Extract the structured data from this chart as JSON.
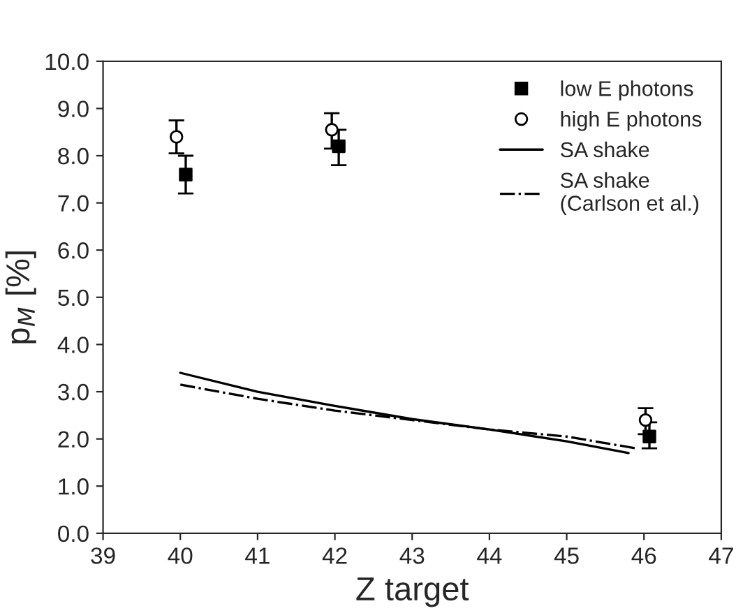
{
  "chart_data": {
    "type": "scatter",
    "xlabel": "Z target",
    "ylabel": "p$_{M}$ [%]",
    "series": [
      {
        "name": "low E photons",
        "color": "#000000",
        "marker": "square",
        "x": [
          40.07,
          42.05,
          46.07
        ],
        "values": [
          7.6,
          8.2,
          2.05
        ],
        "errors": [
          [
            7.2,
            8.0
          ],
          [
            7.8,
            8.55
          ],
          [
            1.8,
            2.35
          ]
        ]
      },
      {
        "name": "high E photons",
        "color": "#000000",
        "marker": "circle",
        "x": [
          39.95,
          41.96,
          46.02
        ],
        "values": [
          8.4,
          8.55,
          2.4
        ],
        "errors": [
          [
            8.05,
            8.75
          ],
          [
            8.15,
            8.9
          ],
          [
            2.1,
            2.65
          ]
        ]
      },
      {
        "name": "SA shake",
        "type": "line",
        "color": "#000000",
        "line_style": "solid",
        "x": [
          40,
          41,
          42,
          43,
          44,
          45,
          45.8
        ],
        "values": [
          3.4,
          3.0,
          2.7,
          2.42,
          2.2,
          1.95,
          1.7
        ]
      },
      {
        "name": "SA shake\n(Carlson et al.)",
        "type": "line",
        "color": "#000000",
        "line_style": "dashdot",
        "x": [
          40,
          41,
          42,
          43,
          44,
          45,
          45.9
        ],
        "values": [
          3.15,
          2.85,
          2.6,
          2.4,
          2.2,
          2.05,
          1.8
        ]
      }
    ],
    "xlim": [
      39,
      47
    ],
    "xticks": [
      39,
      40,
      41,
      42,
      43,
      44,
      45,
      46,
      47
    ],
    "ylim": [
      0,
      10
    ],
    "yticks": [
      {
        "value": 0,
        "label": "0.0"
      },
      {
        "value": 1,
        "label": "1.0"
      },
      {
        "value": 2,
        "label": "2.0"
      },
      {
        "value": 3,
        "label": "3.0"
      },
      {
        "value": 4,
        "label": "4.0"
      },
      {
        "value": 5,
        "label": "5.0"
      },
      {
        "value": 6,
        "label": "6.0"
      },
      {
        "value": 7,
        "label": "7.0"
      },
      {
        "value": 8,
        "label": "8.0"
      },
      {
        "value": 9,
        "label": "9.0"
      },
      {
        "value": 10,
        "label": "10.0"
      }
    ],
    "legend": "top right",
    "grid": false
  }
}
